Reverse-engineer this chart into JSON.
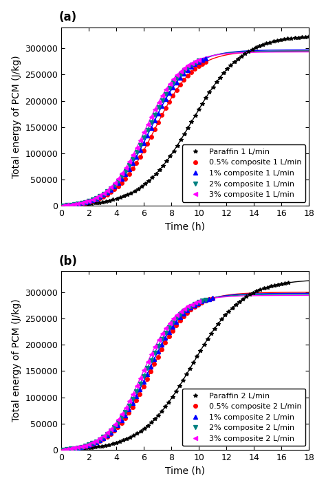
{
  "panel_a": {
    "label": "(a)",
    "xlabel": "Time (h)",
    "ylabel": "Total energy of PCM (J/kg)",
    "xlim": [
      0,
      18
    ],
    "ylim": [
      0,
      340000
    ],
    "yticks": [
      0,
      50000,
      100000,
      150000,
      200000,
      250000,
      300000
    ],
    "xticks": [
      0,
      2,
      4,
      6,
      8,
      10,
      12,
      14,
      16,
      18
    ],
    "series": [
      {
        "label": "Paraffin 1 L/min",
        "color": "#000000",
        "marker": "*",
        "markersize": 4,
        "E_max": 325000,
        "t_mid": 9.5,
        "steepness": 0.55,
        "t_marker_end": 18.0,
        "n_markers": 70
      },
      {
        "label": "0.5% composite 1 L/min",
        "color": "#ff0000",
        "marker": "o",
        "markersize": 4,
        "E_max": 295000,
        "t_mid": 6.8,
        "steepness": 0.7,
        "t_marker_end": 10.5,
        "n_markers": 40
      },
      {
        "label": "1% composite 1 L/min",
        "color": "#0000ff",
        "marker": "^",
        "markersize": 4,
        "E_max": 297000,
        "t_mid": 6.5,
        "steepness": 0.72,
        "t_marker_end": 10.5,
        "n_markers": 40
      },
      {
        "label": "2% composite 1 L/min",
        "color": "#008080",
        "marker": "v",
        "markersize": 4,
        "E_max": 295000,
        "t_mid": 6.3,
        "steepness": 0.74,
        "t_marker_end": 10.0,
        "n_markers": 38
      },
      {
        "label": "3% composite 1 L/min",
        "color": "#ff00ff",
        "marker": "<",
        "markersize": 4,
        "E_max": 293000,
        "t_mid": 6.1,
        "steepness": 0.76,
        "t_marker_end": 10.0,
        "n_markers": 38
      }
    ]
  },
  "panel_b": {
    "label": "(b)",
    "xlabel": "Time (h)",
    "ylabel": "Total energy of PCM (J/kg)",
    "xlim": [
      0,
      18
    ],
    "ylim": [
      0,
      340000
    ],
    "yticks": [
      0,
      50000,
      100000,
      150000,
      200000,
      250000,
      300000
    ],
    "xticks": [
      0,
      2,
      4,
      6,
      8,
      10,
      12,
      14,
      16,
      18
    ],
    "series": [
      {
        "label": "Paraffin 2 L/min",
        "color": "#000000",
        "marker": "*",
        "markersize": 4,
        "E_max": 325000,
        "t_mid": 9.5,
        "steepness": 0.55,
        "t_marker_end": 16.5,
        "n_markers": 65
      },
      {
        "label": "0.5% composite 2 L/min",
        "color": "#ff0000",
        "marker": "o",
        "markersize": 4,
        "E_max": 300000,
        "t_mid": 6.5,
        "steepness": 0.72,
        "t_marker_end": 11.0,
        "n_markers": 42
      },
      {
        "label": "1% composite 2 L/min",
        "color": "#0000ff",
        "marker": "^",
        "markersize": 4,
        "E_max": 298000,
        "t_mid": 6.3,
        "steepness": 0.74,
        "t_marker_end": 11.0,
        "n_markers": 42
      },
      {
        "label": "2% composite 2 L/min",
        "color": "#008080",
        "marker": "v",
        "markersize": 4,
        "E_max": 296000,
        "t_mid": 6.1,
        "steepness": 0.76,
        "t_marker_end": 10.5,
        "n_markers": 40
      },
      {
        "label": "3% composite 2 L/min",
        "color": "#ff00ff",
        "marker": "<",
        "markersize": 4,
        "E_max": 294000,
        "t_mid": 5.9,
        "steepness": 0.78,
        "t_marker_end": 10.0,
        "n_markers": 38
      }
    ]
  },
  "background_color": "#ffffff",
  "spine_color": "#000000",
  "tick_fontsize": 9,
  "label_fontsize": 10,
  "legend_fontsize": 8,
  "panel_label_fontsize": 12
}
